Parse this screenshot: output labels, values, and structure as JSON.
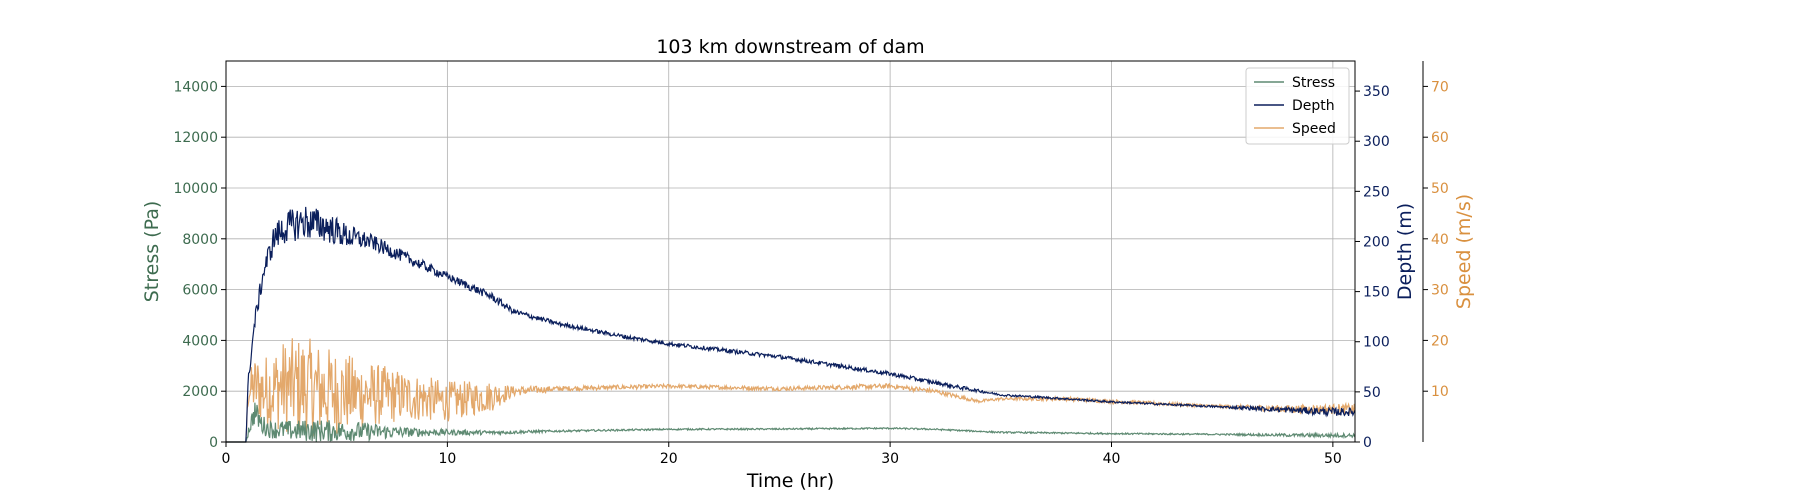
{
  "chart_data": {
    "type": "line",
    "title": "103 km downstream of dam",
    "xlabel": "Time (hr)",
    "xlim": [
      0,
      51
    ],
    "x_ticks": [
      "0",
      "10",
      "20",
      "30",
      "40",
      "50"
    ],
    "grid": true,
    "legend_position": "top-right",
    "axes": {
      "stress": {
        "label": "Stress (Pa)",
        "ylim": [
          0,
          15000
        ],
        "ticks": [
          "0",
          "2000",
          "4000",
          "6000",
          "8000",
          "10000",
          "12000",
          "14000"
        ],
        "color": "#3d6b4f",
        "side": "left"
      },
      "depth": {
        "label": "Depth (m)",
        "ylim": [
          0,
          380
        ],
        "ticks": [
          "0",
          "50",
          "100",
          "150",
          "200",
          "250",
          "300",
          "350"
        ],
        "color": "#0b1f5c",
        "side": "right"
      },
      "speed": {
        "label": "Speed (m/s)",
        "ylim": [
          0,
          75
        ],
        "ticks": [
          "10",
          "20",
          "30",
          "40",
          "50",
          "60",
          "70"
        ],
        "color": "#d9903f",
        "side": "right-outer"
      }
    },
    "series": [
      {
        "name": "Stress",
        "axis": "stress",
        "color": "#5e8a72",
        "x": [
          0,
          0.9,
          1.0,
          1.3,
          1.6,
          2,
          3,
          4,
          5,
          6,
          7,
          8,
          10,
          12,
          15,
          20,
          25,
          30,
          32,
          35,
          40,
          45,
          48,
          50,
          51
        ],
        "y": [
          0,
          0,
          400,
          1200,
          700,
          500,
          450,
          450,
          430,
          420,
          400,
          390,
          380,
          370,
          430,
          500,
          510,
          540,
          500,
          380,
          330,
          300,
          270,
          260,
          260
        ],
        "noise": [
          0,
          0,
          200,
          500,
          400,
          350,
          400,
          450,
          420,
          380,
          300,
          200,
          120,
          80,
          40,
          30,
          30,
          30,
          30,
          30,
          30,
          30,
          60,
          80,
          80
        ]
      },
      {
        "name": "Depth",
        "axis": "depth",
        "color": "#0b1f5c",
        "x": [
          0,
          0.9,
          1.0,
          1.3,
          1.7,
          2.2,
          2.8,
          3.5,
          4.5,
          5.5,
          6.5,
          8,
          10,
          12,
          13,
          15,
          18,
          20,
          25,
          30,
          33,
          35,
          38,
          40,
          45,
          48,
          50,
          51
        ],
        "y": [
          0,
          0,
          60,
          120,
          170,
          205,
          215,
          220,
          215,
          205,
          200,
          185,
          165,
          145,
          130,
          118,
          105,
          98,
          85,
          68,
          55,
          47,
          43,
          40,
          35,
          32,
          30,
          30
        ],
        "noise": [
          0,
          0,
          5,
          8,
          10,
          14,
          16,
          18,
          16,
          12,
          8,
          6,
          4,
          4,
          3,
          2,
          2,
          2,
          2,
          2,
          2,
          1,
          1,
          1,
          1,
          3,
          4,
          4
        ]
      },
      {
        "name": "Speed",
        "axis": "speed",
        "color": "#e3a86b",
        "x": [
          0,
          0.9,
          1.0,
          1.3,
          1.7,
          2.5,
          3.5,
          4.5,
          6,
          8,
          10,
          12,
          13,
          15,
          20,
          25,
          30,
          32,
          33,
          34,
          35,
          38,
          40,
          45,
          48,
          50,
          51
        ],
        "y": [
          0,
          0,
          10,
          11,
          10,
          11,
          11,
          10,
          9.5,
          9,
          8,
          9,
          10,
          10.5,
          11,
          10.5,
          11,
          10,
          9,
          8,
          8.5,
          8.5,
          8,
          7,
          6.5,
          6.5,
          6.5
        ],
        "noise": [
          0,
          0,
          3,
          6,
          7,
          9,
          10,
          9,
          7,
          5,
          4,
          3,
          1,
          0.5,
          0.4,
          0.4,
          0.5,
          0.5,
          0.4,
          0.3,
          0.3,
          0.4,
          0.4,
          0.3,
          0.8,
          1.0,
          1.0
        ]
      }
    ]
  }
}
